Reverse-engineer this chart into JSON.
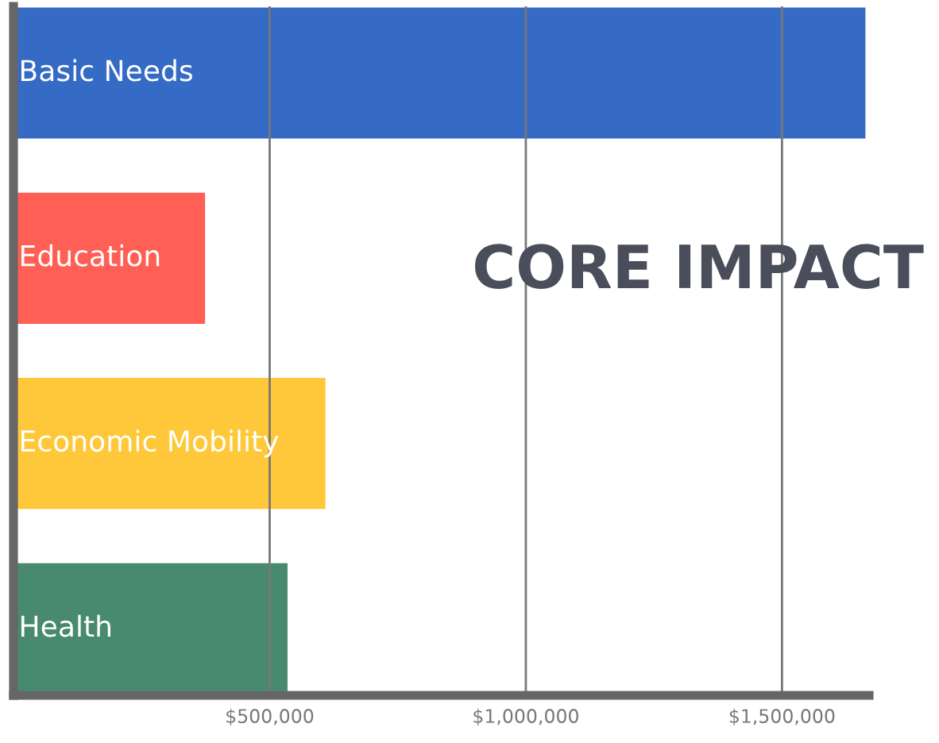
{
  "chart_data": {
    "type": "bar",
    "orientation": "horizontal",
    "title": "CORE IMPACT",
    "categories": [
      "Basic Needs",
      "Education",
      "Economic Mobility",
      "Health"
    ],
    "values": [
      1665000,
      376000,
      611000,
      537000
    ],
    "colors": [
      "#356bc4",
      "#ff5f55",
      "#ffc83a",
      "#488a6f"
    ],
    "xlim": [
      0,
      1670000
    ],
    "xticks": [
      {
        "value": 500000,
        "label": "$500,000"
      },
      {
        "value": 1000000,
        "label": "$1,000,000"
      },
      {
        "value": 1500000,
        "label": "$1,500,000"
      }
    ],
    "grid": "x",
    "legend": false
  }
}
